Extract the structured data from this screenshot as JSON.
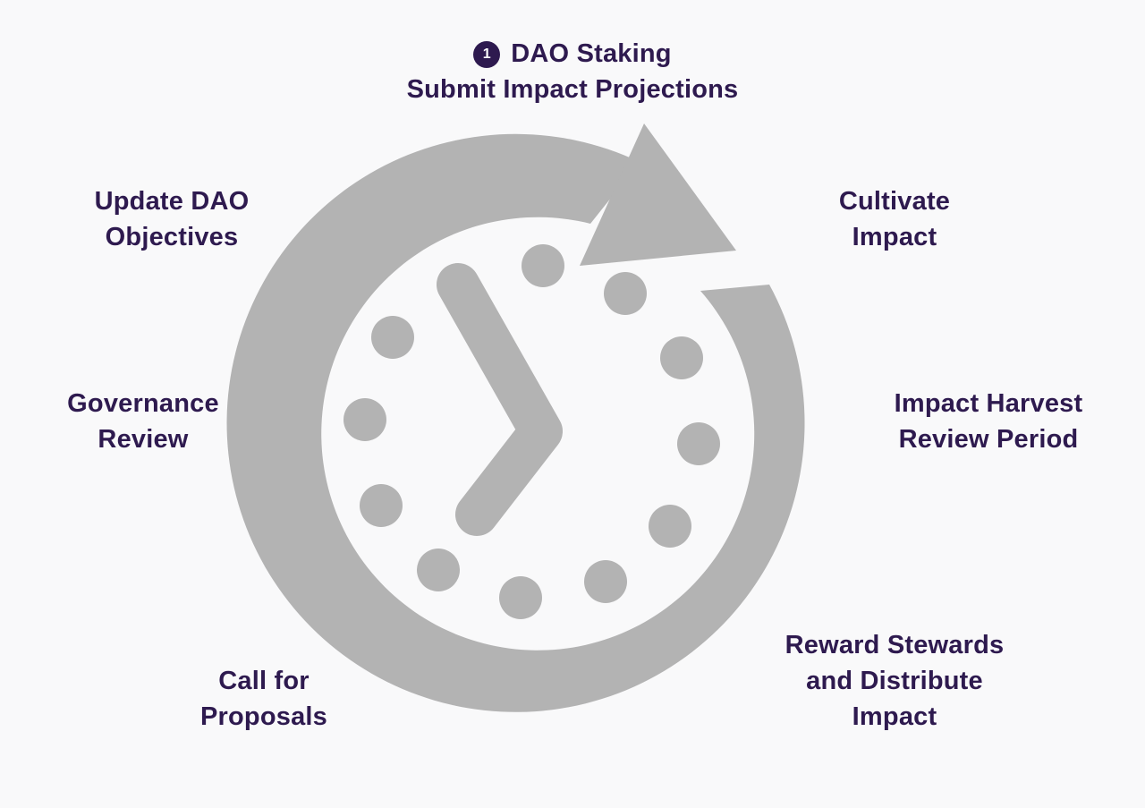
{
  "diagram": {
    "icon_color": "#b3b3b3",
    "label_color": "#2e1a4f",
    "background": "#f9f9fa",
    "center_icon": "clock-cycle-icon",
    "stages": [
      {
        "step": "1",
        "lines": [
          "DAO Staking",
          "Submit Impact Projections"
        ]
      },
      {
        "lines": [
          "Cultivate",
          "Impact"
        ]
      },
      {
        "lines": [
          "Impact Harvest",
          "Review Period"
        ]
      },
      {
        "lines": [
          "Reward Stewards",
          "and Distribute",
          "Impact"
        ]
      },
      {
        "lines": [
          "Call for",
          "Proposals"
        ]
      },
      {
        "lines": [
          "Governance",
          "Review"
        ]
      },
      {
        "lines": [
          "Update DAO",
          "Objectives"
        ]
      }
    ]
  }
}
